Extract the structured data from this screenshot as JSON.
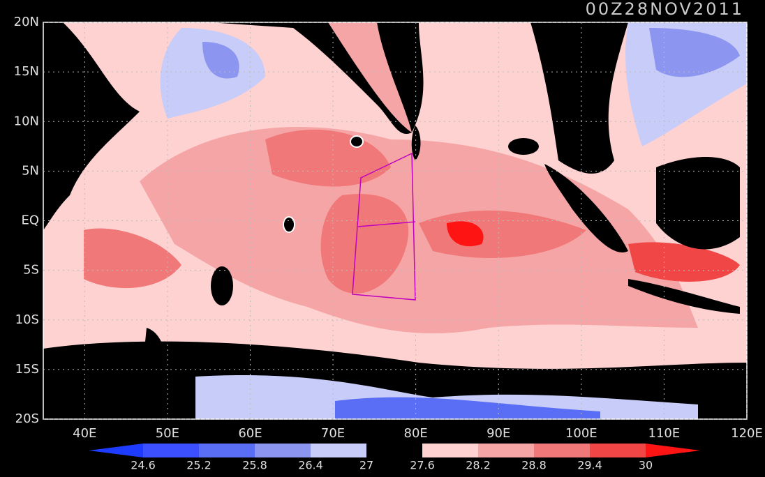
{
  "title": "00Z28NOV2011",
  "map": {
    "xlim": [
      35,
      120
    ],
    "ylim": [
      -20,
      20
    ],
    "xticks": [
      {
        "value": 40,
        "label": "40E"
      },
      {
        "value": 50,
        "label": "50E"
      },
      {
        "value": 60,
        "label": "60E"
      },
      {
        "value": 70,
        "label": "70E"
      },
      {
        "value": 80,
        "label": "80E"
      },
      {
        "value": 90,
        "label": "90E"
      },
      {
        "value": 100,
        "label": "100E"
      },
      {
        "value": 110,
        "label": "110E"
      },
      {
        "value": 120,
        "label": "120E"
      }
    ],
    "yticks": [
      {
        "value": 20,
        "label": "20N"
      },
      {
        "value": 15,
        "label": "15N"
      },
      {
        "value": 10,
        "label": "10N"
      },
      {
        "value": 5,
        "label": "5N"
      },
      {
        "value": 0,
        "label": "EQ"
      },
      {
        "value": -5,
        "label": "5S"
      },
      {
        "value": -10,
        "label": "10S"
      },
      {
        "value": -15,
        "label": "15S"
      },
      {
        "value": -20,
        "label": "20S"
      }
    ],
    "grid": true
  },
  "colorbar": {
    "ticks": [
      24.6,
      25.2,
      25.8,
      26.4,
      27,
      27.6,
      28.2,
      28.8,
      29.4,
      30
    ],
    "colors": [
      "#1e3cff",
      "#3c50ff",
      "#5a6ef5",
      "#8c96f0",
      "#c8ccf8",
      "#000000",
      "#ffd2d2",
      "#f5a5a5",
      "#f07878",
      "#f04646",
      "#ff1414"
    ]
  }
}
